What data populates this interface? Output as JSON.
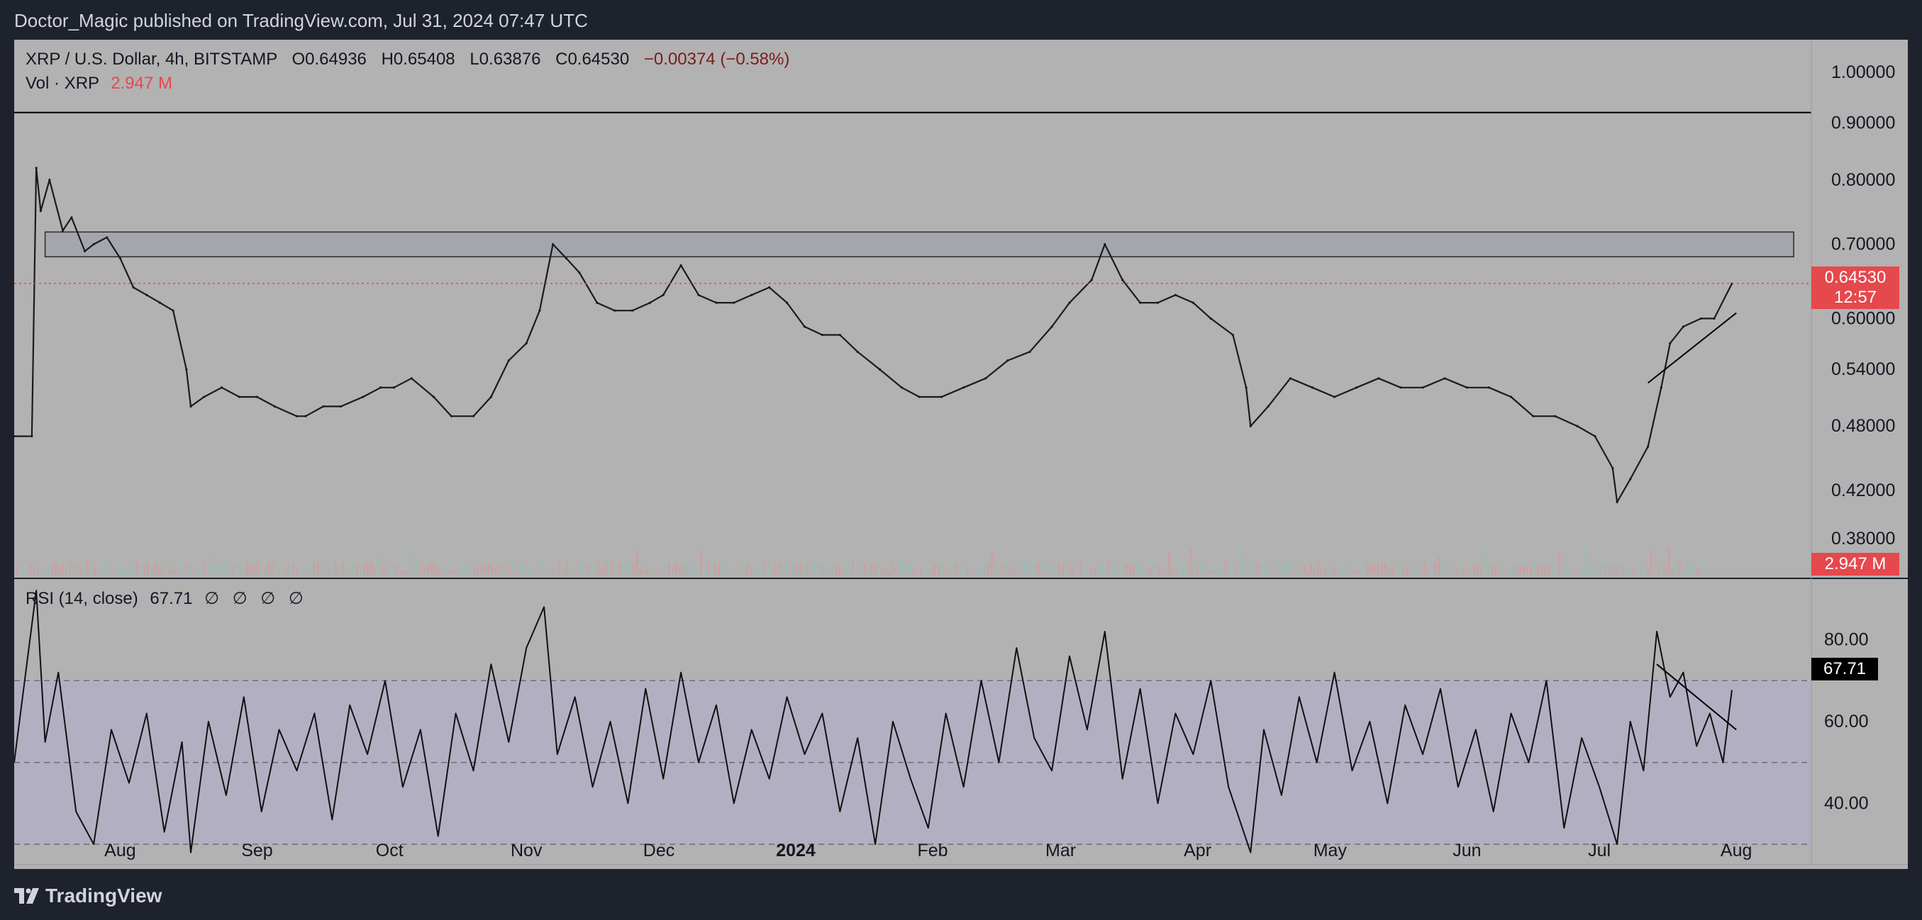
{
  "publisher_line": "Doctor_Magic published on TradingView.com, Jul 31, 2024 07:47 UTC",
  "legend": {
    "symbol": "XRP / U.S. Dollar, 4h, BITSTAMP",
    "open": "O0.64936",
    "high": "H0.65408",
    "low": "L0.63876",
    "close": "C0.64530",
    "change": "−0.00374 (−0.58%)",
    "vol_label": "Vol · XRP",
    "vol_value": "2.947 M",
    "rsi_label": "RSI (14, close)",
    "rsi_value": "67.71",
    "rsi_symbols": "∅ ∅ ∅ ∅"
  },
  "price_tag": {
    "price": "0.64530",
    "countdown": "12:57",
    "volume": "2.947 M",
    "rsi": "67.71"
  },
  "footer": {
    "brand": "TradingView"
  },
  "colors": {
    "background": "#b2b2b2",
    "frame": "#1e222d",
    "candle": "#1b1b1b",
    "price_tag": "#e5484d",
    "rsi_band": "#b3afc3",
    "zone_fill": "#a3a6ad"
  },
  "chart_data": [
    {
      "type": "line",
      "title": "XRP / U.S. Dollar, 4h, BITSTAMP",
      "scale": "log",
      "ylim": [
        0.35,
        1.07
      ],
      "y_ticks": [
        "1.00000",
        "0.90000",
        "0.80000",
        "0.70000",
        "0.60000",
        "0.54000",
        "0.48000",
        "0.42000",
        "0.38000"
      ],
      "y_tick_values": [
        1.0,
        0.9,
        0.8,
        0.7,
        0.6,
        0.54,
        0.48,
        0.42,
        0.38
      ],
      "x_ticks": [
        "Aug",
        "Sep",
        "Oct",
        "Nov",
        "Dec",
        "2024",
        "Feb",
        "Mar",
        "Apr",
        "May",
        "Jun",
        "Jul",
        "Aug"
      ],
      "x_tick_dates": [
        "2023-08-01",
        "2023-09-01",
        "2023-10-01",
        "2023-11-01",
        "2023-12-01",
        "2024-01-01",
        "2024-02-01",
        "2024-03-01",
        "2024-04-01",
        "2024-05-01",
        "2024-06-01",
        "2024-07-01",
        "2024-08-01"
      ],
      "x_range": [
        "2023-07-08",
        "2024-08-18"
      ],
      "series": [
        {
          "dates": [
            "2023-07-08",
            "2023-07-12",
            "2023-07-13",
            "2023-07-14",
            "2023-07-16",
            "2023-07-19",
            "2023-07-21",
            "2023-07-24",
            "2023-07-26",
            "2023-07-29",
            "2023-08-01",
            "2023-08-04",
            "2023-08-07",
            "2023-08-10",
            "2023-08-13",
            "2023-08-16",
            "2023-08-17",
            "2023-08-20",
            "2023-08-24",
            "2023-08-28",
            "2023-09-01",
            "2023-09-05",
            "2023-09-10",
            "2023-09-12",
            "2023-09-16",
            "2023-09-20",
            "2023-09-25",
            "2023-09-29",
            "2023-10-02",
            "2023-10-06",
            "2023-10-11",
            "2023-10-15",
            "2023-10-20",
            "2023-10-24",
            "2023-10-28",
            "2023-11-01",
            "2023-11-04",
            "2023-11-07",
            "2023-11-10",
            "2023-11-13",
            "2023-11-17",
            "2023-11-21",
            "2023-11-25",
            "2023-11-29",
            "2023-12-02",
            "2023-12-06",
            "2023-12-10",
            "2023-12-14",
            "2023-12-18",
            "2023-12-22",
            "2023-12-26",
            "2023-12-30",
            "2024-01-03",
            "2024-01-07",
            "2024-01-11",
            "2024-01-15",
            "2024-01-20",
            "2024-01-25",
            "2024-01-29",
            "2024-02-03",
            "2024-02-08",
            "2024-02-13",
            "2024-02-18",
            "2024-02-23",
            "2024-02-28",
            "2024-03-03",
            "2024-03-08",
            "2024-03-11",
            "2024-03-15",
            "2024-03-19",
            "2024-03-23",
            "2024-03-27",
            "2024-03-31",
            "2024-04-04",
            "2024-04-09",
            "2024-04-12",
            "2024-04-13",
            "2024-04-17",
            "2024-04-22",
            "2024-04-27",
            "2024-05-02",
            "2024-05-07",
            "2024-05-12",
            "2024-05-17",
            "2024-05-22",
            "2024-05-27",
            "2024-06-01",
            "2024-06-06",
            "2024-06-11",
            "2024-06-16",
            "2024-06-21",
            "2024-06-26",
            "2024-06-30",
            "2024-07-04",
            "2024-07-05",
            "2024-07-08",
            "2024-07-12",
            "2024-07-15",
            "2024-07-17",
            "2024-07-20",
            "2024-07-24",
            "2024-07-27",
            "2024-07-31"
          ],
          "values": [
            0.47,
            0.47,
            0.82,
            0.75,
            0.8,
            0.72,
            0.74,
            0.69,
            0.7,
            0.71,
            0.68,
            0.64,
            0.63,
            0.62,
            0.61,
            0.54,
            0.5,
            0.51,
            0.52,
            0.51,
            0.51,
            0.5,
            0.49,
            0.49,
            0.5,
            0.5,
            0.51,
            0.52,
            0.52,
            0.53,
            0.51,
            0.49,
            0.49,
            0.51,
            0.55,
            0.57,
            0.61,
            0.7,
            0.68,
            0.66,
            0.62,
            0.61,
            0.61,
            0.62,
            0.63,
            0.67,
            0.63,
            0.62,
            0.62,
            0.63,
            0.64,
            0.62,
            0.59,
            0.58,
            0.58,
            0.56,
            0.54,
            0.52,
            0.51,
            0.51,
            0.52,
            0.53,
            0.55,
            0.56,
            0.59,
            0.62,
            0.65,
            0.7,
            0.65,
            0.62,
            0.62,
            0.63,
            0.62,
            0.6,
            0.58,
            0.52,
            0.48,
            0.5,
            0.53,
            0.52,
            0.51,
            0.52,
            0.53,
            0.52,
            0.52,
            0.53,
            0.52,
            0.52,
            0.51,
            0.49,
            0.49,
            0.48,
            0.47,
            0.44,
            0.41,
            0.43,
            0.46,
            0.52,
            0.57,
            0.59,
            0.6,
            0.6,
            0.645
          ]
        }
      ],
      "annotations": [
        {
          "kind": "horizontal-line",
          "price": 0.92
        },
        {
          "kind": "zone",
          "price_top": 0.718,
          "price_bottom": 0.682,
          "start": "2023-07-15",
          "end": "2024-08-14"
        },
        {
          "kind": "trendline",
          "start_date": "2024-07-12",
          "start_price": 0.525,
          "end_date": "2024-08-01",
          "end_price": 0.607
        },
        {
          "kind": "last-price-line",
          "price": 0.6453
        }
      ]
    },
    {
      "type": "bar",
      "title": "Vol · XRP",
      "last_value": "2.947 M"
    },
    {
      "type": "line",
      "title": "RSI (14, close)",
      "ylim": [
        25,
        95
      ],
      "y_ticks": [
        "80.00",
        "60.00",
        "40.00"
      ],
      "y_tick_values": [
        80,
        60,
        40
      ],
      "bands": {
        "upper": 70,
        "middle": 50,
        "lower": 30
      },
      "last_value": 67.71,
      "series": [
        {
          "dates": [
            "2023-07-08",
            "2023-07-13",
            "2023-07-15",
            "2023-07-18",
            "2023-07-22",
            "2023-07-26",
            "2023-07-30",
            "2023-08-03",
            "2023-08-07",
            "2023-08-11",
            "2023-08-15",
            "2023-08-17",
            "2023-08-21",
            "2023-08-25",
            "2023-08-29",
            "2023-09-02",
            "2023-09-06",
            "2023-09-10",
            "2023-09-14",
            "2023-09-18",
            "2023-09-22",
            "2023-09-26",
            "2023-09-30",
            "2023-10-04",
            "2023-10-08",
            "2023-10-12",
            "2023-10-16",
            "2023-10-20",
            "2023-10-24",
            "2023-10-28",
            "2023-11-01",
            "2023-11-05",
            "2023-11-08",
            "2023-11-12",
            "2023-11-16",
            "2023-11-20",
            "2023-11-24",
            "2023-11-28",
            "2023-12-02",
            "2023-12-06",
            "2023-12-10",
            "2023-12-14",
            "2023-12-18",
            "2023-12-22",
            "2023-12-26",
            "2023-12-30",
            "2024-01-03",
            "2024-01-07",
            "2024-01-11",
            "2024-01-15",
            "2024-01-19",
            "2024-01-23",
            "2024-01-27",
            "2024-01-31",
            "2024-02-04",
            "2024-02-08",
            "2024-02-12",
            "2024-02-16",
            "2024-02-20",
            "2024-02-24",
            "2024-02-28",
            "2024-03-03",
            "2024-03-07",
            "2024-03-11",
            "2024-03-15",
            "2024-03-19",
            "2024-03-23",
            "2024-03-27",
            "2024-03-31",
            "2024-04-04",
            "2024-04-08",
            "2024-04-13",
            "2024-04-16",
            "2024-04-20",
            "2024-04-24",
            "2024-04-28",
            "2024-05-02",
            "2024-05-06",
            "2024-05-10",
            "2024-05-14",
            "2024-05-18",
            "2024-05-22",
            "2024-05-26",
            "2024-05-30",
            "2024-06-03",
            "2024-06-07",
            "2024-06-11",
            "2024-06-15",
            "2024-06-19",
            "2024-06-23",
            "2024-06-27",
            "2024-07-01",
            "2024-07-05",
            "2024-07-08",
            "2024-07-11",
            "2024-07-14",
            "2024-07-17",
            "2024-07-20",
            "2024-07-23",
            "2024-07-26",
            "2024-07-29",
            "2024-07-31"
          ],
          "values": [
            50,
            92,
            55,
            72,
            38,
            30,
            58,
            45,
            62,
            33,
            55,
            28,
            60,
            42,
            66,
            38,
            58,
            48,
            62,
            36,
            64,
            52,
            70,
            44,
            58,
            32,
            62,
            48,
            74,
            55,
            78,
            88,
            52,
            66,
            44,
            60,
            40,
            68,
            46,
            72,
            50,
            64,
            40,
            58,
            46,
            66,
            52,
            62,
            38,
            56,
            30,
            60,
            46,
            34,
            62,
            44,
            70,
            50,
            78,
            56,
            48,
            76,
            58,
            82,
            46,
            68,
            40,
            62,
            52,
            70,
            44,
            28,
            58,
            42,
            66,
            50,
            72,
            48,
            60,
            40,
            64,
            52,
            68,
            44,
            58,
            38,
            62,
            50,
            70,
            34,
            56,
            44,
            30,
            60,
            48,
            82,
            66,
            72,
            54,
            62,
            50,
            67.71
          ]
        }
      ],
      "annotations": [
        {
          "kind": "trendline",
          "start_date": "2024-07-14",
          "start_value": 74,
          "end_date": "2024-08-01",
          "end_value": 58
        }
      ]
    }
  ]
}
